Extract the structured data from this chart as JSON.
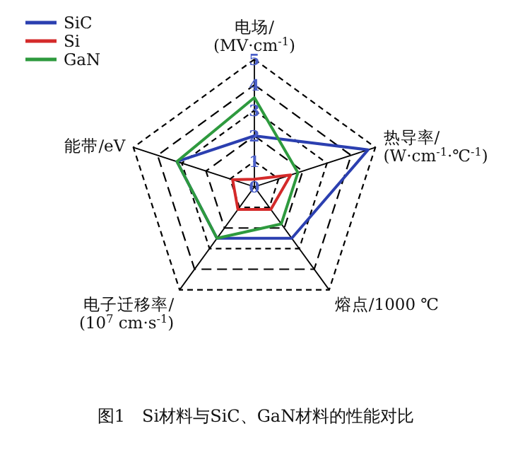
{
  "chart_data": {
    "type": "radar",
    "categories": [
      "电场/(MV·cm$^{-1}$)",
      "热导率/(W·cm$^{-1}$·℃$^{-1}$)",
      "熔点/1000 ℃",
      "电子迁移率/(10$^{7}$ cm·s$^{-1}$)",
      "能带/eV"
    ],
    "series": [
      {
        "name": "SiC",
        "color": "#2b3fb0",
        "values": [
          2,
          4.7,
          2.5,
          2.5,
          3.2
        ]
      },
      {
        "name": "Si",
        "color": "#d42a2a",
        "values": [
          0.3,
          1.5,
          1.1,
          1.1,
          0.9
        ]
      },
      {
        "name": "GaN",
        "color": "#2e9a3e",
        "values": [
          3.5,
          1.8,
          1.8,
          2.5,
          3.2
        ]
      }
    ],
    "ylim": [
      0,
      5
    ],
    "yticks": [
      0,
      1,
      2,
      3,
      4,
      5
    ],
    "grid": true,
    "legend": "top left",
    "annotations": [
      "图1　Si材料与SiC、GaN材料的性能对比"
    ]
  }
}
